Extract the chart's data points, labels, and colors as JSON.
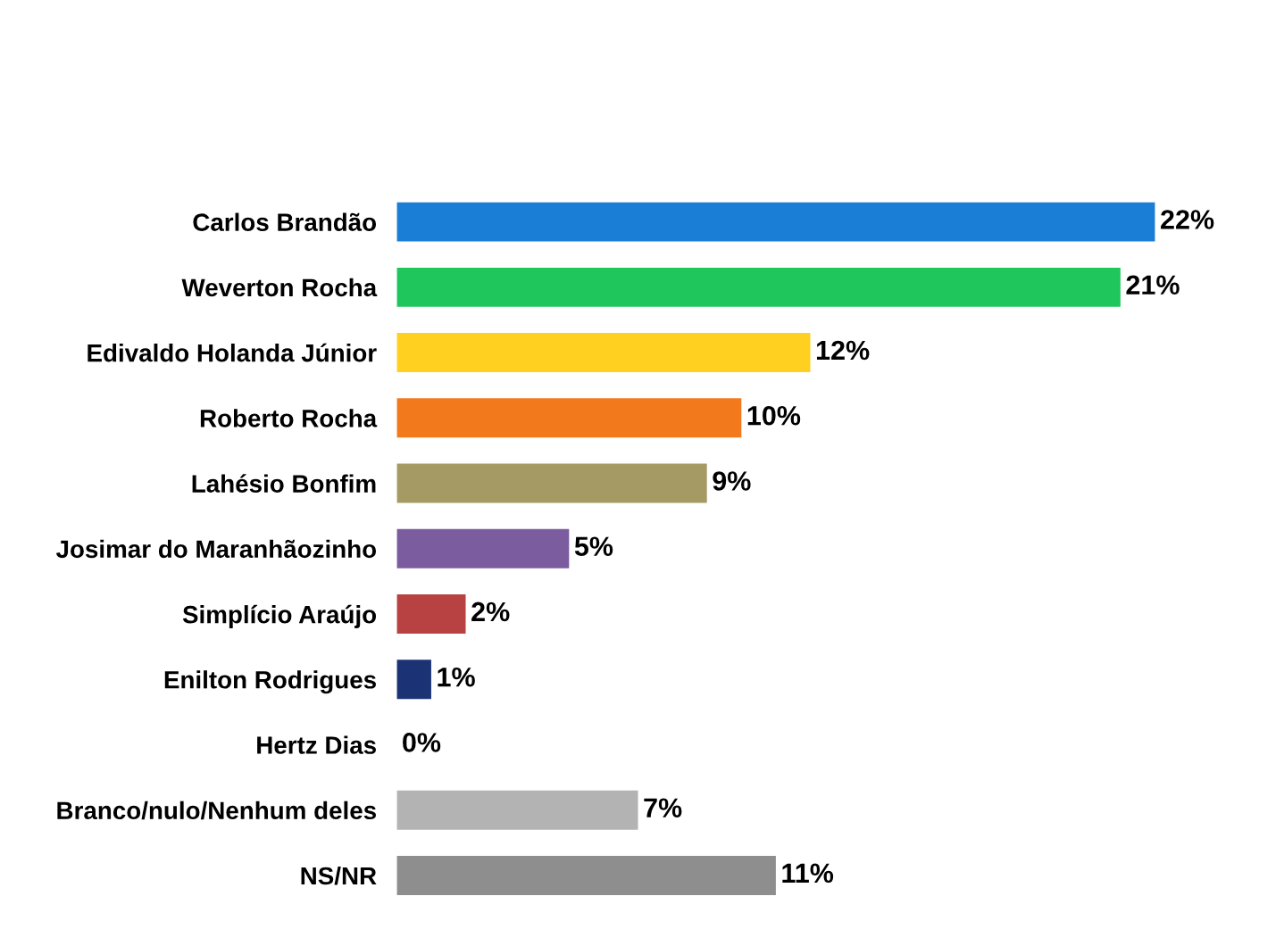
{
  "chart_data": {
    "type": "bar",
    "orientation": "horizontal",
    "categories": [
      "Carlos Brandão",
      "Weverton Rocha",
      "Edivaldo Holanda Júnior",
      "Roberto Rocha",
      "Lahésio Bonfim",
      "Josimar do Maranhãozinho",
      "Simplício Araújo",
      "Enilton Rodrigues",
      "Hertz Dias",
      "Branco/nulo/Nenhum deles",
      "NS/NR"
    ],
    "values": [
      22,
      21,
      12,
      10,
      9,
      5,
      2,
      1,
      0,
      7,
      11
    ],
    "colors": [
      "#1a7ed6",
      "#1fc65c",
      "#ffd020",
      "#f27a1c",
      "#a69a64",
      "#7b5c9f",
      "#b84242",
      "#1b3274",
      "#888888",
      "#b3b3b3",
      "#8e8e8e"
    ],
    "value_labels": [
      "22%",
      "21%",
      "12%",
      "10%",
      "9%",
      "5%",
      "2%",
      "1%",
      "0%",
      "7%",
      "11%"
    ],
    "grid": false,
    "legend": false
  }
}
